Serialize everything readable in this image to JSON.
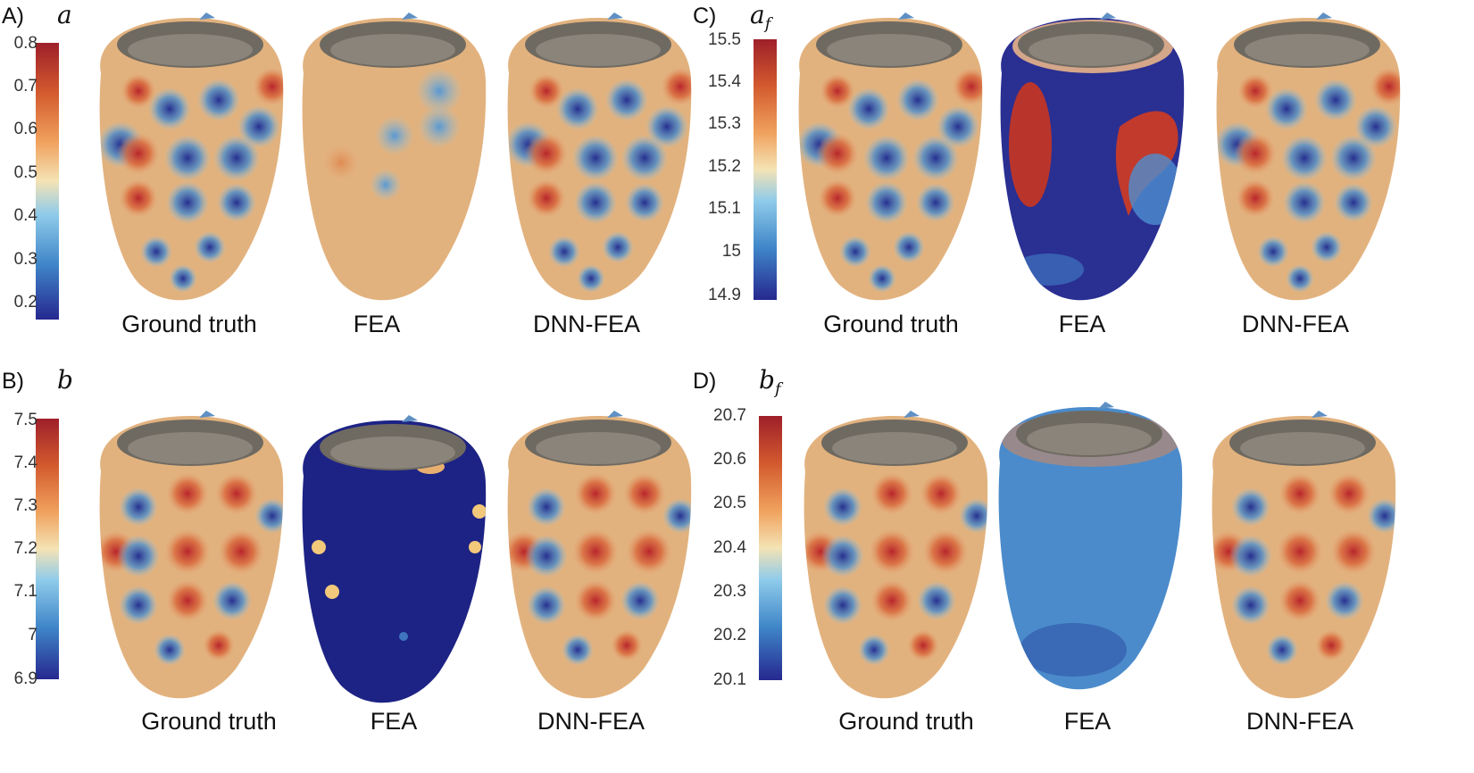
{
  "panels": {
    "a": {
      "label": "A)",
      "symbol": "a",
      "symbol_sub": "",
      "ticks": [
        "0.8",
        "0.7",
        "0.6",
        "0.5",
        "0.4",
        "0.3",
        "0.2"
      ]
    },
    "c": {
      "label": "C)",
      "symbol": "a",
      "symbol_sub": "f",
      "ticks": [
        "15.5",
        "15.4",
        "15.3",
        "15.2",
        "15.1",
        "15",
        "14.9"
      ]
    },
    "b": {
      "label": "B)",
      "symbol": "b",
      "symbol_sub": "",
      "ticks": [
        "7.5",
        "7.4",
        "7.3",
        "7.2",
        "7.1",
        "7",
        "6.9"
      ]
    },
    "d": {
      "label": "D)",
      "symbol": "b",
      "symbol_sub": "f",
      "ticks": [
        "20.7",
        "20.6",
        "20.5",
        "20.4",
        "20.3",
        "20.2",
        "20.1"
      ]
    }
  },
  "captions": {
    "ground_truth": "Ground truth",
    "fea": "FEA",
    "dnn_fea": "DNN-FEA"
  },
  "colormap": [
    "#9e1f2a",
    "#d35a2e",
    "#f0a25e",
    "#f4e3b5",
    "#8fcbea",
    "#3f86c9",
    "#26288f"
  ]
}
